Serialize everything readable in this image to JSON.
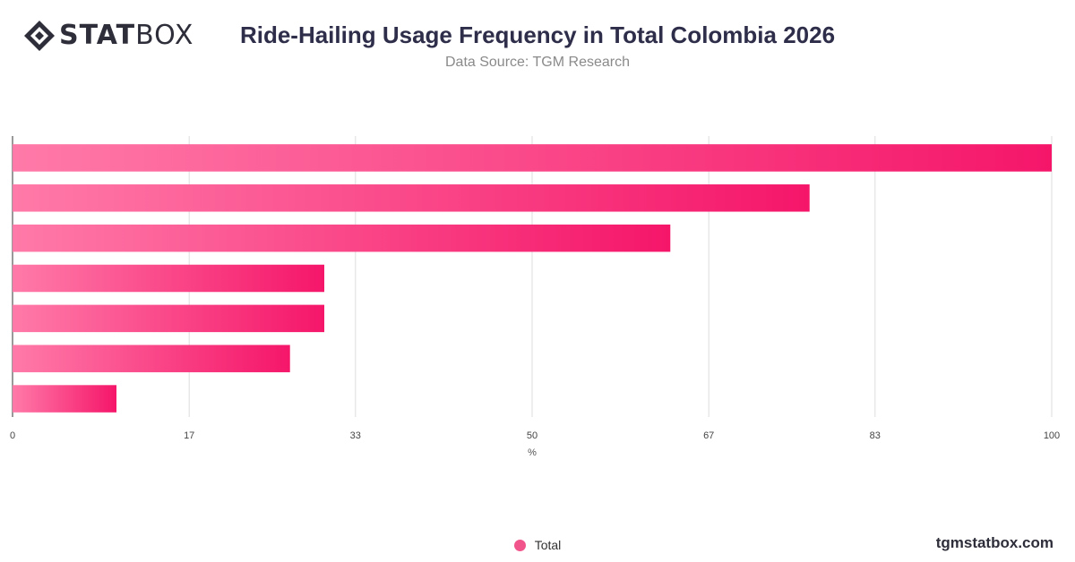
{
  "brand": {
    "logo_bold": "STAT",
    "logo_light": "BOX",
    "footer": "tgmstatbox.com"
  },
  "colors": {
    "bar_start": "#ff7aa8",
    "bar_end": "#f5166a",
    "title": "#2e2e4a",
    "grid": "#dddddd"
  },
  "chart_data": {
    "type": "bar",
    "orientation": "horizontal",
    "title": "Ride-Hailing Usage Frequency in Total Colombia 2026",
    "subtitle": "Data Source: TGM Research",
    "xlabel": "%",
    "ylabel": "",
    "xlim": [
      0,
      100
    ],
    "x_ticks": [
      "0",
      "17",
      "33",
      "50",
      "67",
      "83",
      "100"
    ],
    "categories": [
      "",
      "",
      "",
      "",
      "",
      "",
      ""
    ],
    "series": [
      {
        "name": "Total",
        "values": [
          100,
          76.7,
          63.3,
          30,
          30,
          26.7,
          10
        ]
      }
    ],
    "grid": true,
    "legend": "bottom-center"
  }
}
